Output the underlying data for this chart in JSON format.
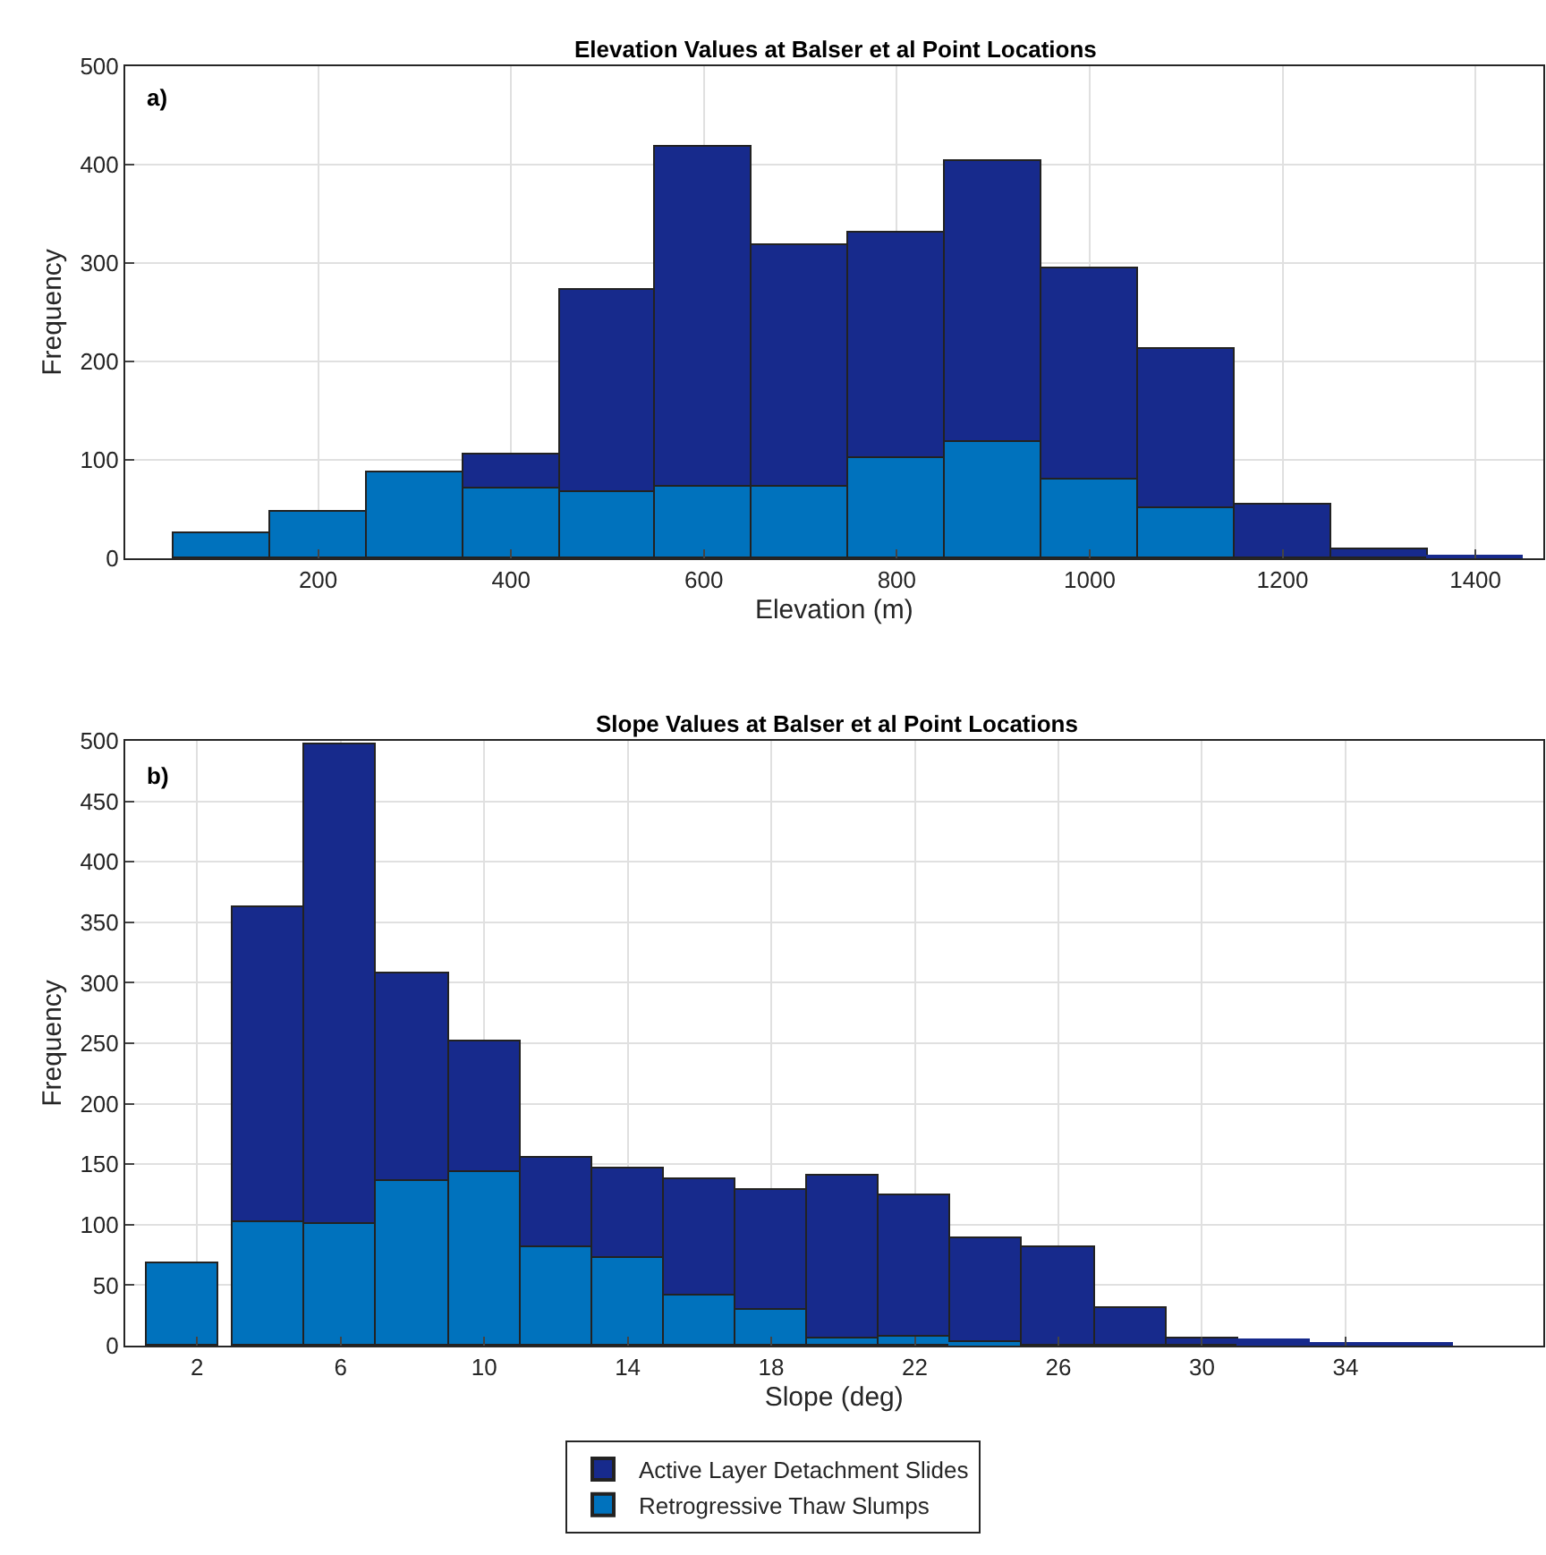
{
  "chart_data": [
    {
      "type": "bar",
      "title": "Elevation Values at Balser et al Point Locations",
      "xlabel": "Elevation (m)",
      "ylabel": "Frequency",
      "annotations": [
        "a)"
      ],
      "x": [
        100,
        200,
        300,
        400,
        500,
        600,
        700,
        800,
        900,
        1000,
        1100,
        1200,
        1300,
        1400
      ],
      "stacked": true,
      "series": [
        {
          "color": "#0072bd",
          "values": [
            26,
            48,
            88,
            71,
            68,
            73,
            73,
            101,
            119,
            80,
            51,
            0,
            0,
            0
          ]
        },
        {
          "color": "#172a8c",
          "values": [
            0,
            0,
            0,
            34,
            204,
            345,
            246,
            230,
            285,
            214,
            161,
            55,
            10,
            2
          ]
        }
      ],
      "xlim": [
        0,
        1470
      ],
      "xticks": [
        200,
        400,
        600,
        800,
        1000,
        1200,
        1400
      ],
      "ylim": [
        0,
        500
      ],
      "yticks": [
        0,
        100,
        200,
        300,
        400,
        500
      ],
      "grid": true
    },
    {
      "type": "bar",
      "title": "Slope Values at Balser et al Point Locations",
      "xlabel": "Slope (deg)",
      "ylabel": "Frequency",
      "annotations": [
        "b)"
      ],
      "x": [
        1.6,
        4,
        6,
        8,
        10,
        12,
        14,
        16,
        18,
        20,
        22,
        24,
        26,
        28,
        30,
        32,
        34,
        36
      ],
      "stacked": true,
      "series": [
        {
          "name": "Retrogressive Thaw Slumps",
          "color": "#0072bd",
          "values": [
            68,
            102,
            100,
            136,
            144,
            82,
            72,
            42,
            30,
            6,
            7,
            3,
            0,
            0,
            0,
            0,
            0,
            0
          ]
        },
        {
          "name": "Active Layer Detachment Slides",
          "color": "#172a8c",
          "values": [
            0,
            261,
            397,
            172,
            108,
            73,
            74,
            95,
            99,
            135,
            118,
            86,
            81,
            31,
            6,
            4,
            1,
            1
          ]
        }
      ],
      "xlim": [
        0,
        39.5
      ],
      "xticks": [
        2,
        6,
        10,
        14,
        18,
        22,
        26,
        30,
        34
      ],
      "ylim": [
        0,
        500
      ],
      "yticks": [
        0,
        50,
        100,
        150,
        200,
        250,
        300,
        350,
        400,
        450,
        500
      ],
      "grid": true,
      "legend": "bottom"
    }
  ]
}
